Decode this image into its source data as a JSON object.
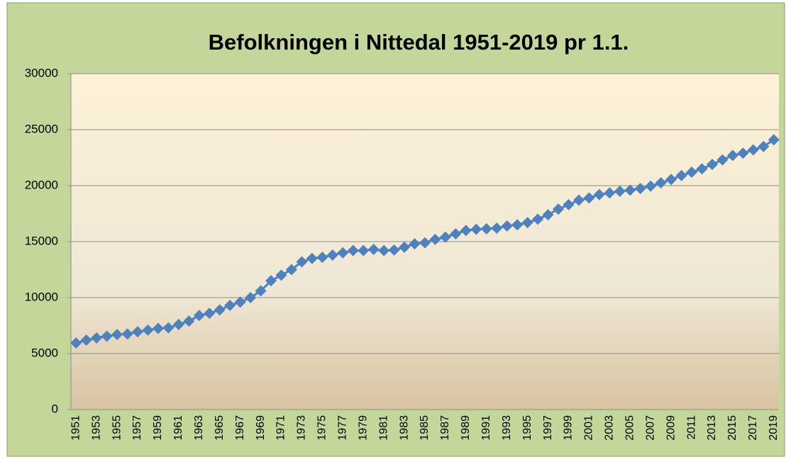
{
  "chart_data": {
    "type": "line",
    "title": "Befolkningen i Nittedal 1951-2019 pr 1.1.",
    "categories": [
      "1951",
      null,
      "1953",
      null,
      "1955",
      null,
      "1957",
      null,
      "1959",
      null,
      "1961",
      null,
      "1963",
      null,
      "1965",
      null,
      "1967",
      null,
      "1969",
      null,
      "1971",
      null,
      "1973",
      null,
      "1975",
      null,
      "1977",
      null,
      "1979",
      null,
      "1981",
      null,
      "1983",
      null,
      "1985",
      null,
      "1987",
      null,
      "1989",
      null,
      "1991",
      null,
      "1993",
      null,
      "1995",
      null,
      "1997",
      null,
      "1999",
      null,
      "2001",
      null,
      "2003",
      null,
      "2005",
      null,
      "2007",
      null,
      "2009",
      null,
      "2011",
      null,
      "2013",
      null,
      "2015",
      null,
      "2017",
      null,
      "2019"
    ],
    "series": [
      {
        "color": "#4f81bd",
        "values": [
          5950,
          6200,
          6400,
          6550,
          6700,
          6750,
          6950,
          7100,
          7250,
          7300,
          7600,
          7900,
          8400,
          8600,
          8900,
          9300,
          9600,
          10000,
          10600,
          11500,
          12000,
          12500,
          13200,
          13500,
          13600,
          13800,
          14000,
          14200,
          14200,
          14300,
          14200,
          14250,
          14500,
          14800,
          14900,
          15200,
          15400,
          15700,
          16000,
          16100,
          16150,
          16200,
          16400,
          16500,
          16700,
          17000,
          17400,
          17900,
          18300,
          18700,
          18900,
          19200,
          19350,
          19500,
          19600,
          19750,
          19950,
          20250,
          20550,
          20900,
          21200,
          21500,
          21900,
          22300,
          22700,
          22900,
          23200,
          23500,
          24100
        ]
      }
    ],
    "ylim": [
      0,
      30000
    ],
    "yticks": [
      0,
      5000,
      10000,
      15000,
      20000,
      25000,
      30000
    ],
    "grid": true
  }
}
